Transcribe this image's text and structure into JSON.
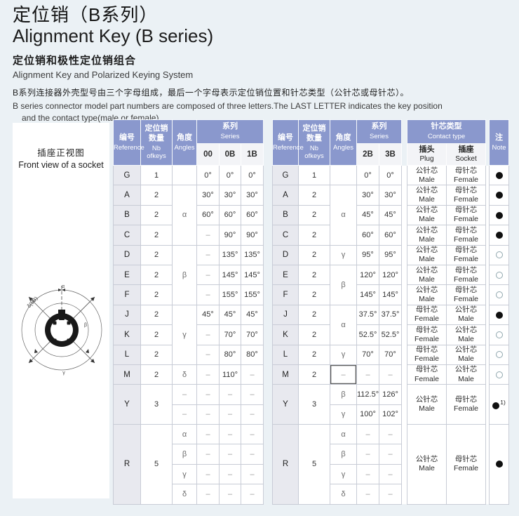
{
  "page": {
    "title_cn": "定位销（B系列）",
    "title_en": "Alignment Key (B series)",
    "subtitle_cn": "定位销和极性定位销组合",
    "subtitle_en": "Alignment Key and Polarized Keying System",
    "para_cn": "B系列连接器外壳型号由三个字母组成，最后一个字母表示定位销位置和针芯类型（公针芯或母针芯）。",
    "para_en_line1": "B series connector model part numbers are composed of three letters.The LAST LETTER indicates the key position",
    "para_en_line2": "and the contact type(male or female)."
  },
  "colors": {
    "header_blue": "#8a98cd",
    "page_bg": "#ebf1f5",
    "ref_col_bg": "#e8e9ef",
    "cell_border": "#c8ccd6",
    "filled_dot": "#101010",
    "open_dot_stroke": "#8fa6ad"
  },
  "diagram": {
    "caption_cn": "插座正视图",
    "caption_en": "Front view of a socket",
    "labels": {
      "top": "α",
      "upper_left": "δ(5B)",
      "right": "β",
      "bottom": "γ"
    }
  },
  "left_table": {
    "header": {
      "reference": {
        "cn": "编号",
        "en": "Reference"
      },
      "nb_keys": {
        "cn": "定位销\n数量",
        "en": "Nb\nofkeys"
      },
      "angles": {
        "cn": "角度",
        "en": "Angles"
      },
      "series": {
        "cn": "系列",
        "en": "Series"
      },
      "series_cols": [
        "00",
        "0B",
        "1B"
      ]
    },
    "rows": [
      {
        "ref": {
          "t": "G"
        },
        "nb": {
          "t": "1"
        },
        "angle": {
          "t": ""
        },
        "series": [
          "0°",
          "0°",
          "0°"
        ]
      },
      {
        "ref": {
          "t": "A"
        },
        "nb": {
          "t": "2"
        },
        "angle": {
          "t": "α",
          "rs": 3,
          "greek": true
        },
        "series": [
          "30°",
          "30°",
          "30°"
        ]
      },
      {
        "ref": {
          "t": "B"
        },
        "nb": {
          "t": "2"
        },
        "series": [
          "60°",
          "60°",
          "60°"
        ]
      },
      {
        "ref": {
          "t": "C"
        },
        "nb": {
          "t": "2"
        },
        "series": [
          "–",
          "90°",
          "90°"
        ]
      },
      {
        "ref": {
          "t": "D"
        },
        "nb": {
          "t": "2"
        },
        "angle": {
          "t": "β",
          "rs": 3,
          "greek": true
        },
        "series": [
          "–",
          "135°",
          "135°"
        ]
      },
      {
        "ref": {
          "t": "E"
        },
        "nb": {
          "t": "2"
        },
        "series": [
          "–",
          "145°",
          "145°"
        ]
      },
      {
        "ref": {
          "t": "F"
        },
        "nb": {
          "t": "2"
        },
        "series": [
          "–",
          "155°",
          "155°"
        ]
      },
      {
        "ref": {
          "t": "J"
        },
        "nb": {
          "t": "2"
        },
        "angle": {
          "t": "γ",
          "rs": 3,
          "greek": true
        },
        "series": [
          "45°",
          "45°",
          "45°"
        ]
      },
      {
        "ref": {
          "t": "K"
        },
        "nb": {
          "t": "2"
        },
        "series": [
          "–",
          "70°",
          "70°"
        ]
      },
      {
        "ref": {
          "t": "L"
        },
        "nb": {
          "t": "2"
        },
        "series": [
          "–",
          "80°",
          "80°"
        ]
      },
      {
        "ref": {
          "t": "M"
        },
        "nb": {
          "t": "2"
        },
        "angle": {
          "t": "δ",
          "greek": true
        },
        "series": [
          "–",
          "110°",
          "–"
        ]
      },
      {
        "ref": {
          "t": "Y",
          "rs": 2
        },
        "nb": {
          "t": "3",
          "rs": 2
        },
        "angle": {
          "t": "–"
        },
        "series": [
          "–",
          "–",
          "–"
        ]
      },
      {
        "angle": {
          "t": "–"
        },
        "series": [
          "–",
          "–",
          "–"
        ]
      },
      {
        "ref": {
          "t": "R",
          "rs": 4
        },
        "nb": {
          "t": "5",
          "rs": 4
        },
        "angle": {
          "t": "α",
          "greek": true
        },
        "series": [
          "–",
          "–",
          "–"
        ]
      },
      {
        "angle": {
          "t": "β",
          "greek": true
        },
        "series": [
          "–",
          "–",
          "–"
        ]
      },
      {
        "angle": {
          "t": "γ",
          "greek": true
        },
        "series": [
          "–",
          "–",
          "–"
        ]
      },
      {
        "angle": {
          "t": "δ",
          "greek": true
        },
        "series": [
          "–",
          "–",
          "–"
        ]
      }
    ]
  },
  "right_table": {
    "header": {
      "reference": {
        "cn": "编号",
        "en": "Reference"
      },
      "nb_keys": {
        "cn": "定位销\n数量",
        "en": "Nb\nofkeys"
      },
      "angles": {
        "cn": "角度",
        "en": "Angles"
      },
      "series": {
        "cn": "系列",
        "en": "Series"
      },
      "series_cols": [
        "2B",
        "3B"
      ],
      "contact": {
        "cn": "针芯类型",
        "en": "Contact type"
      },
      "plug": {
        "cn": "插头",
        "en": "Plug"
      },
      "socket": {
        "cn": "插座",
        "en": "Socket"
      },
      "note": {
        "cn": "注",
        "en": "Note"
      }
    },
    "rows": [
      {
        "ref": {
          "t": "G"
        },
        "nb": {
          "t": "1"
        },
        "angle": {
          "t": ""
        },
        "series": [
          "0°",
          "0°"
        ],
        "plug": {
          "cn": "公针芯",
          "en": "Male"
        },
        "socket": {
          "cn": "母针芯",
          "en": "Female"
        },
        "note": {
          "dot": "filled"
        }
      },
      {
        "ref": {
          "t": "A"
        },
        "nb": {
          "t": "2"
        },
        "angle": {
          "t": "α",
          "rs": 3,
          "greek": true
        },
        "series": [
          "30°",
          "30°"
        ],
        "plug": {
          "cn": "公针芯",
          "en": "Male"
        },
        "socket": {
          "cn": "母针芯",
          "en": "Female"
        },
        "note": {
          "dot": "filled"
        }
      },
      {
        "ref": {
          "t": "B"
        },
        "nb": {
          "t": "2"
        },
        "series": [
          "45°",
          "45°"
        ],
        "plug": {
          "cn": "公针芯",
          "en": "Male"
        },
        "socket": {
          "cn": "母针芯",
          "en": "Female"
        },
        "note": {
          "dot": "filled"
        }
      },
      {
        "ref": {
          "t": "C"
        },
        "nb": {
          "t": "2"
        },
        "series": [
          "60°",
          "60°"
        ],
        "plug": {
          "cn": "公针芯",
          "en": "Male"
        },
        "socket": {
          "cn": "母针芯",
          "en": "Female"
        },
        "note": {
          "dot": "filled"
        }
      },
      {
        "ref": {
          "t": "D"
        },
        "nb": {
          "t": "2"
        },
        "angle": {
          "t": "γ",
          "greek": true
        },
        "series": [
          "95°",
          "95°"
        ],
        "plug": {
          "cn": "公针芯",
          "en": "Male"
        },
        "socket": {
          "cn": "母针芯",
          "en": "Female"
        },
        "note": {
          "dot": "open"
        }
      },
      {
        "ref": {
          "t": "E"
        },
        "nb": {
          "t": "2"
        },
        "angle": {
          "t": "β",
          "rs": 2,
          "greek": true
        },
        "series": [
          "120°",
          "120°"
        ],
        "plug": {
          "cn": "公针芯",
          "en": "Male"
        },
        "socket": {
          "cn": "母针芯",
          "en": "Female"
        },
        "note": {
          "dot": "open"
        }
      },
      {
        "ref": {
          "t": "F"
        },
        "nb": {
          "t": "2"
        },
        "series": [
          "145°",
          "145°"
        ],
        "plug": {
          "cn": "公针芯",
          "en": "Male"
        },
        "socket": {
          "cn": "母针芯",
          "en": "Female"
        },
        "note": {
          "dot": "open"
        }
      },
      {
        "ref": {
          "t": "J"
        },
        "nb": {
          "t": "2"
        },
        "angle": {
          "t": "α",
          "rs": 2,
          "greek": true
        },
        "series": [
          "37.5°",
          "37.5°"
        ],
        "plug": {
          "cn": "母针芯",
          "en": "Female"
        },
        "socket": {
          "cn": "公针芯",
          "en": "Male"
        },
        "note": {
          "dot": "filled"
        }
      },
      {
        "ref": {
          "t": "K"
        },
        "nb": {
          "t": "2"
        },
        "series": [
          "52.5°",
          "52.5°"
        ],
        "plug": {
          "cn": "母针芯",
          "en": "Female"
        },
        "socket": {
          "cn": "公针芯",
          "en": "Male"
        },
        "note": {
          "dot": "open"
        }
      },
      {
        "ref": {
          "t": "L"
        },
        "nb": {
          "t": "2"
        },
        "angle": {
          "t": "γ",
          "greek": true
        },
        "series": [
          "70°",
          "70°"
        ],
        "plug": {
          "cn": "母针芯",
          "en": "Female"
        },
        "socket": {
          "cn": "公针芯",
          "en": "Male"
        },
        "note": {
          "dot": "open"
        }
      },
      {
        "ref": {
          "t": "M"
        },
        "nb": {
          "t": "2"
        },
        "angle": {
          "t": "–",
          "boxed": true
        },
        "series": [
          "–",
          "–"
        ],
        "plug": {
          "cn": "母针芯",
          "en": "Female"
        },
        "socket": {
          "cn": "公针芯",
          "en": "Male"
        },
        "note": {
          "dot": "open"
        }
      },
      {
        "ref": {
          "t": "Y",
          "rs": 2
        },
        "nb": {
          "t": "3",
          "rs": 2
        },
        "angle": {
          "t": "β",
          "greek": true
        },
        "series": [
          "112.5°",
          "126°"
        ],
        "plug": {
          "cn": "公针芯",
          "en": "Male",
          "rs": 2
        },
        "socket": {
          "cn": "母针芯",
          "en": "Female",
          "rs": 2
        },
        "note": {
          "dot": "filled",
          "sup": "1)",
          "rs": 2
        }
      },
      {
        "angle": {
          "t": "γ",
          "greek": true
        },
        "series": [
          "100°",
          "102°"
        ]
      },
      {
        "ref": {
          "t": "R",
          "rs": 4
        },
        "nb": {
          "t": "5",
          "rs": 4
        },
        "angle": {
          "t": "α",
          "greek": true
        },
        "series": [
          "–",
          "–"
        ],
        "plug": {
          "cn": "公针芯",
          "en": "Male",
          "rs": 4
        },
        "socket": {
          "cn": "母针芯",
          "en": "Female",
          "rs": 4
        },
        "note": {
          "dot": "filled",
          "rs": 4
        }
      },
      {
        "angle": {
          "t": "β",
          "greek": true
        },
        "series": [
          "–",
          "–"
        ]
      },
      {
        "angle": {
          "t": "γ",
          "greek": true
        },
        "series": [
          "–",
          "–"
        ]
      },
      {
        "angle": {
          "t": "δ",
          "greek": true
        },
        "series": [
          "–",
          "–"
        ]
      }
    ]
  }
}
